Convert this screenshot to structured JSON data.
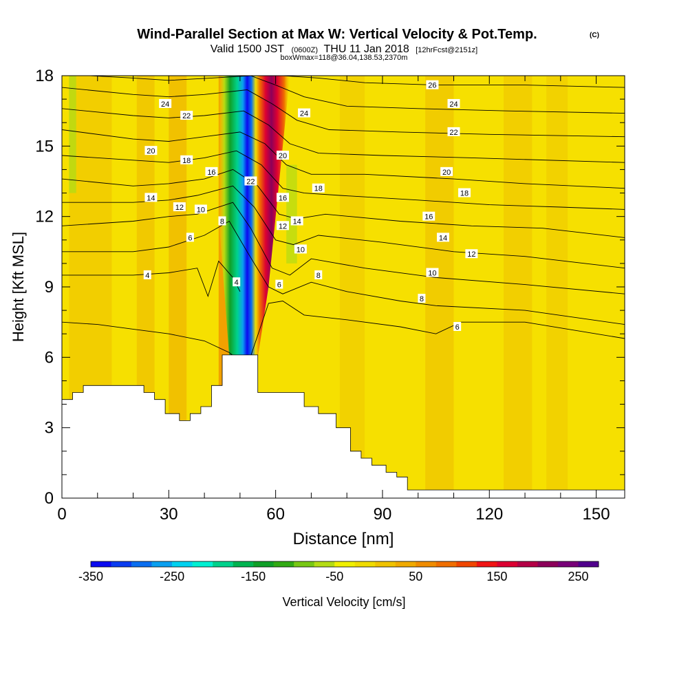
{
  "header": {
    "title": "Wind-Parallel Section at Max W: Vertical Velocity & Pot.Temp.",
    "title_mark": "(C)",
    "valid_prefix": "Valid 1500 JST",
    "valid_utc": "(0600Z)",
    "valid_date": "THU 11 Jan 2018",
    "forecast": "[12hrFcst@2151z]",
    "box_info": "boxWmax=118@36.04,138.53,2370m"
  },
  "chart_data": {
    "type": "heatmap",
    "xlabel": "Distance [nm]",
    "ylabel": "Height [Kft MSL]",
    "xlim": [
      0,
      158
    ],
    "ylim": [
      0,
      18
    ],
    "x_ticks": [
      "0",
      "30",
      "60",
      "90",
      "120",
      "150"
    ],
    "y_ticks": [
      "0",
      "3",
      "6",
      "9",
      "12",
      "15",
      "18"
    ],
    "x_tick_values": [
      0,
      30,
      60,
      90,
      120,
      150
    ],
    "y_tick_values": [
      0,
      3,
      6,
      9,
      12,
      15,
      18
    ],
    "field_shaded": "Vertical Velocity [cm/s]",
    "field_contoured": "Potential Temperature",
    "terrain_profile": [
      [
        0,
        4.2
      ],
      [
        3,
        4.2
      ],
      [
        3,
        4.5
      ],
      [
        6,
        4.5
      ],
      [
        6,
        4.8
      ],
      [
        23,
        4.8
      ],
      [
        23,
        4.5
      ],
      [
        26,
        4.5
      ],
      [
        26,
        4.2
      ],
      [
        29,
        4.2
      ],
      [
        29,
        3.6
      ],
      [
        33,
        3.6
      ],
      [
        33,
        3.3
      ],
      [
        36,
        3.3
      ],
      [
        36,
        3.6
      ],
      [
        39,
        3.6
      ],
      [
        39,
        3.9
      ],
      [
        42,
        3.9
      ],
      [
        42,
        4.8
      ],
      [
        45,
        4.8
      ],
      [
        45,
        6.1
      ],
      [
        55,
        6.1
      ],
      [
        55,
        4.5
      ],
      [
        68,
        4.5
      ],
      [
        68,
        3.9
      ],
      [
        72,
        3.9
      ],
      [
        72,
        3.6
      ],
      [
        77,
        3.6
      ],
      [
        77,
        3.0
      ],
      [
        81,
        3.0
      ],
      [
        81,
        2.0
      ],
      [
        84,
        2.0
      ],
      [
        84,
        1.7
      ],
      [
        87,
        1.7
      ],
      [
        87,
        1.4
      ],
      [
        91,
        1.4
      ],
      [
        91,
        1.1
      ],
      [
        94,
        1.1
      ],
      [
        94,
        0.9
      ],
      [
        97,
        0.9
      ],
      [
        97,
        0.35
      ],
      [
        158,
        0.35
      ]
    ],
    "theta_contours": [
      {
        "label": "4",
        "pts": [
          [
            0,
            9.5
          ],
          [
            20,
            9.5
          ],
          [
            30,
            9.6
          ],
          [
            38,
            9.8
          ],
          [
            41,
            8.6
          ],
          [
            44,
            10.1
          ],
          [
            48,
            9.4
          ],
          [
            50,
            8.8
          ]
        ]
      },
      {
        "label": "6",
        "pts": [
          [
            0,
            7.5
          ],
          [
            10,
            7.4
          ],
          [
            20,
            7.2
          ],
          [
            30,
            7.0
          ],
          [
            40,
            6.7
          ],
          [
            47,
            6.2
          ],
          [
            52,
            5.6
          ],
          [
            58,
            8.3
          ],
          [
            62,
            8.4
          ],
          [
            68,
            7.8
          ],
          [
            80,
            7.6
          ],
          [
            95,
            7.3
          ],
          [
            105,
            7.0
          ],
          [
            112,
            7.5
          ],
          [
            130,
            7.5
          ],
          [
            158,
            6.8
          ]
        ]
      },
      {
        "label": "8",
        "pts": [
          [
            0,
            10.5
          ],
          [
            20,
            10.5
          ],
          [
            30,
            10.7
          ],
          [
            40,
            11.2
          ],
          [
            47,
            11.8
          ],
          [
            52,
            10.5
          ],
          [
            58,
            9.0
          ],
          [
            62,
            8.7
          ],
          [
            70,
            9.2
          ],
          [
            80,
            8.8
          ],
          [
            95,
            8.4
          ],
          [
            105,
            8.2
          ],
          [
            130,
            8.0
          ],
          [
            158,
            7.4
          ]
        ]
      },
      {
        "label": "10",
        "pts": [
          [
            0,
            11.6
          ],
          [
            20,
            11.8
          ],
          [
            30,
            12.0
          ],
          [
            38,
            12.1
          ],
          [
            48,
            12.6
          ],
          [
            53,
            11.5
          ],
          [
            59,
            9.8
          ],
          [
            64,
            9.5
          ],
          [
            70,
            10.2
          ],
          [
            85,
            9.8
          ],
          [
            105,
            9.4
          ],
          [
            130,
            9.1
          ],
          [
            158,
            8.7
          ]
        ]
      },
      {
        "label": "12",
        "pts": [
          [
            0,
            12.6
          ],
          [
            20,
            12.6
          ],
          [
            30,
            12.7
          ],
          [
            38,
            12.9
          ],
          [
            48,
            13.3
          ],
          [
            54,
            12.4
          ],
          [
            60,
            11.0
          ],
          [
            65,
            10.8
          ],
          [
            72,
            11.2
          ],
          [
            90,
            10.9
          ],
          [
            110,
            10.5
          ],
          [
            130,
            10.3
          ],
          [
            158,
            9.8
          ]
        ]
      },
      {
        "label": "14",
        "pts": [
          [
            0,
            13.6
          ],
          [
            20,
            13.3
          ],
          [
            30,
            13.4
          ],
          [
            40,
            13.6
          ],
          [
            48,
            14.0
          ],
          [
            55,
            13.3
          ],
          [
            61,
            12.1
          ],
          [
            66,
            11.9
          ],
          [
            74,
            12.1
          ],
          [
            95,
            11.8
          ],
          [
            115,
            11.6
          ],
          [
            135,
            11.5
          ],
          [
            158,
            11.1
          ]
        ]
      },
      {
        "label": "16",
        "pts": [
          [
            0,
            14.6
          ],
          [
            20,
            14.4
          ],
          [
            30,
            14.3
          ],
          [
            40,
            14.5
          ],
          [
            49,
            14.8
          ],
          [
            56,
            14.2
          ],
          [
            62,
            13.2
          ],
          [
            68,
            13.0
          ],
          [
            78,
            12.9
          ],
          [
            100,
            12.7
          ],
          [
            120,
            12.5
          ],
          [
            140,
            12.4
          ],
          [
            158,
            12.3
          ]
        ]
      },
      {
        "label": "18",
        "pts": [
          [
            0,
            15.7
          ],
          [
            20,
            15.3
          ],
          [
            30,
            15.2
          ],
          [
            40,
            15.4
          ],
          [
            50,
            15.6
          ],
          [
            57,
            15.1
          ],
          [
            63,
            14.2
          ],
          [
            70,
            13.8
          ],
          [
            85,
            13.8
          ],
          [
            110,
            13.6
          ],
          [
            130,
            13.4
          ],
          [
            158,
            13.2
          ]
        ]
      },
      {
        "label": "20",
        "pts": [
          [
            0,
            16.6
          ],
          [
            20,
            16.3
          ],
          [
            30,
            16.2
          ],
          [
            40,
            16.3
          ],
          [
            51,
            16.5
          ],
          [
            58,
            15.9
          ],
          [
            64,
            15.1
          ],
          [
            72,
            14.7
          ],
          [
            90,
            14.6
          ],
          [
            115,
            14.5
          ],
          [
            158,
            14.3
          ]
        ]
      },
      {
        "label": "22",
        "pts": [
          [
            0,
            17.5
          ],
          [
            20,
            17.2
          ],
          [
            30,
            17.1
          ],
          [
            40,
            17.2
          ],
          [
            52,
            17.4
          ],
          [
            59,
            16.8
          ],
          [
            66,
            16.1
          ],
          [
            75,
            15.7
          ],
          [
            95,
            15.6
          ],
          [
            120,
            15.5
          ],
          [
            158,
            15.4
          ]
        ]
      },
      {
        "label": "24",
        "pts": [
          [
            8,
            18.0
          ],
          [
            20,
            17.9
          ],
          [
            30,
            17.8
          ],
          [
            42,
            17.9
          ],
          [
            53,
            18.0
          ],
          [
            60,
            17.6
          ],
          [
            68,
            17.1
          ],
          [
            80,
            16.7
          ],
          [
            100,
            16.6
          ],
          [
            125,
            16.5
          ],
          [
            158,
            16.4
          ]
        ]
      },
      {
        "label": "26",
        "pts": [
          [
            62,
            18.0
          ],
          [
            72,
            17.9
          ],
          [
            85,
            17.7
          ],
          [
            105,
            17.6
          ],
          [
            130,
            17.6
          ],
          [
            158,
            17.5
          ]
        ]
      }
    ],
    "contour_labels": [
      {
        "text": "4",
        "x": 24,
        "y": 9.5
      },
      {
        "text": "4",
        "x": 49,
        "y": 9.2
      },
      {
        "text": "6",
        "x": 36,
        "y": 11.1
      },
      {
        "text": "6",
        "x": 61,
        "y": 9.1
      },
      {
        "text": "6",
        "x": 111,
        "y": 7.3
      },
      {
        "text": "8",
        "x": 45,
        "y": 11.8
      },
      {
        "text": "8",
        "x": 72,
        "y": 9.5
      },
      {
        "text": "8",
        "x": 101,
        "y": 8.5
      },
      {
        "text": "10",
        "x": 39,
        "y": 12.3
      },
      {
        "text": "10",
        "x": 67,
        "y": 10.6
      },
      {
        "text": "10",
        "x": 104,
        "y": 9.6
      },
      {
        "text": "12",
        "x": 33,
        "y": 12.4
      },
      {
        "text": "12",
        "x": 62,
        "y": 11.6
      },
      {
        "text": "12",
        "x": 115,
        "y": 10.4
      },
      {
        "text": "14",
        "x": 25,
        "y": 12.8
      },
      {
        "text": "14",
        "x": 66,
        "y": 11.8
      },
      {
        "text": "14",
        "x": 107,
        "y": 11.1
      },
      {
        "text": "16",
        "x": 42,
        "y": 13.9
      },
      {
        "text": "16",
        "x": 62,
        "y": 12.8
      },
      {
        "text": "16",
        "x": 103,
        "y": 12.0
      },
      {
        "text": "18",
        "x": 35,
        "y": 14.4
      },
      {
        "text": "18",
        "x": 72,
        "y": 13.2
      },
      {
        "text": "18",
        "x": 113,
        "y": 13.0
      },
      {
        "text": "20",
        "x": 25,
        "y": 14.8
      },
      {
        "text": "20",
        "x": 62,
        "y": 14.6
      },
      {
        "text": "20",
        "x": 108,
        "y": 13.9
      },
      {
        "text": "22",
        "x": 35,
        "y": 16.3
      },
      {
        "text": "22",
        "x": 53,
        "y": 13.5
      },
      {
        "text": "22",
        "x": 110,
        "y": 15.6
      },
      {
        "text": "24",
        "x": 29,
        "y": 16.8
      },
      {
        "text": "24",
        "x": 68,
        "y": 16.4
      },
      {
        "text": "24",
        "x": 110,
        "y": 16.8
      },
      {
        "text": "26",
        "x": 104,
        "y": 17.6
      }
    ],
    "colorbar": {
      "label": "Vertical Velocity [cm/s]",
      "min": -350,
      "max": 275,
      "tick_labels": [
        "-350",
        "-250",
        "-150",
        "-50",
        "50",
        "150",
        "250"
      ],
      "tick_values": [
        -350,
        -250,
        -150,
        -50,
        50,
        150,
        250
      ],
      "colors": [
        "#0a0af0",
        "#0a3cf0",
        "#0a6ef0",
        "#0aa0f0",
        "#00d2f0",
        "#00f0d2",
        "#00d28c",
        "#00b450",
        "#10a028",
        "#32aa14",
        "#78c814",
        "#b4dc14",
        "#f0f000",
        "#f0dc00",
        "#f0c300",
        "#f0aa00",
        "#f08c00",
        "#f06e00",
        "#f04600",
        "#f01414",
        "#dc0032",
        "#b40046",
        "#8c005a",
        "#780078",
        "#50008c"
      ]
    }
  }
}
